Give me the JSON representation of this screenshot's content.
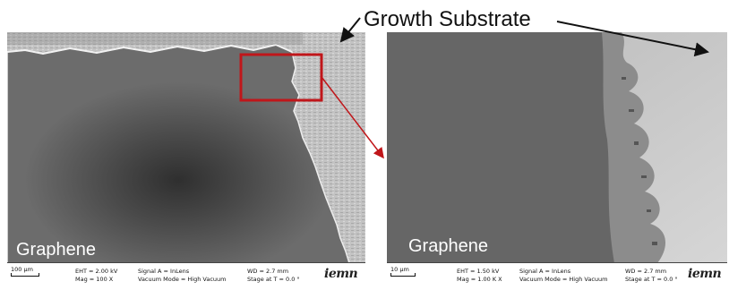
{
  "annotation": {
    "title": "Growth Substrate"
  },
  "left_image": {
    "label": "Graphene",
    "scale_text": "100 µm",
    "eht": "EHT = 2.00 kV",
    "mag": "Mag = 100 X",
    "signal": "Signal A = InLens",
    "vacuum": "Vacuum Mode = High Vacuum",
    "wd": "WD = 2.7 mm",
    "stage": "Stage at T = 0.0 °",
    "logo": "iemn"
  },
  "right_image": {
    "label": "Graphene",
    "scale_text": "10 µm",
    "eht": "EHT = 1.50 kV",
    "mag": "Mag = 1.00 K X",
    "signal": "Signal A = InLens",
    "vacuum": "Vacuum Mode = High Vacuum",
    "wd": "WD = 2.7 mm",
    "stage": "Stage at T = 0.0 °",
    "logo": "iemn"
  },
  "colors": {
    "graphene": "#6a6a6a",
    "substrate": "#bdbdbd",
    "zoom_box": "#c0161a",
    "arrow": "#111111"
  }
}
